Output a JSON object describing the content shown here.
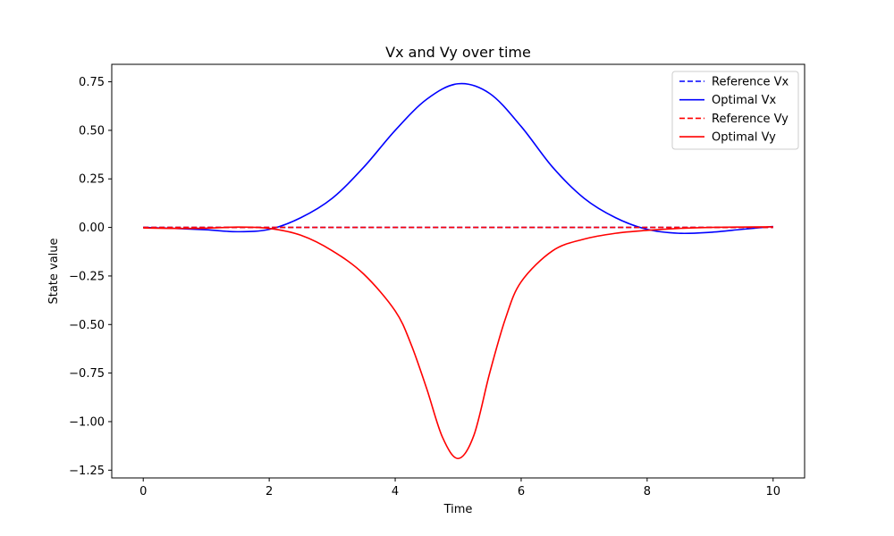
{
  "chart_data": {
    "type": "line",
    "title": "Vx and Vy over time",
    "xlabel": "Time",
    "ylabel": "State value",
    "xlim": [
      -0.5,
      10.5
    ],
    "ylim": [
      -1.29,
      0.84
    ],
    "xticks": [
      0,
      2,
      4,
      6,
      8,
      10
    ],
    "xtick_labels": [
      "0",
      "2",
      "4",
      "6",
      "8",
      "10"
    ],
    "yticks": [
      0.75,
      0.5,
      0.25,
      0.0,
      -0.25,
      -0.5,
      -0.75,
      -1.0,
      -1.25
    ],
    "ytick_labels": [
      "0.75",
      "0.50",
      "0.25",
      "0.00",
      "−0.25",
      "−0.50",
      "−0.75",
      "−1.00",
      "−1.25"
    ],
    "grid": false,
    "legend_position": "top-right",
    "series": [
      {
        "name": "Reference Vx",
        "color": "#0000ff",
        "style": "dashed",
        "x": [
          0,
          10
        ],
        "y": [
          0,
          0
        ]
      },
      {
        "name": "Optimal Vx",
        "color": "#0000ff",
        "style": "solid",
        "x": [
          0,
          0.5,
          1.0,
          1.5,
          2.0,
          2.5,
          3.0,
          3.5,
          4.0,
          4.5,
          5.0,
          5.5,
          6.0,
          6.5,
          7.0,
          7.5,
          8.0,
          8.5,
          9.0,
          9.5,
          10.0
        ],
        "y": [
          0.0,
          -0.005,
          -0.012,
          -0.022,
          -0.01,
          0.05,
          0.15,
          0.31,
          0.5,
          0.66,
          0.74,
          0.69,
          0.52,
          0.31,
          0.15,
          0.05,
          -0.01,
          -0.03,
          -0.025,
          -0.01,
          0.005
        ]
      },
      {
        "name": "Reference Vy",
        "color": "#ff0000",
        "style": "dashed",
        "x": [
          0,
          10
        ],
        "y": [
          0,
          0
        ]
      },
      {
        "name": "Optimal Vy",
        "color": "#ff0000",
        "style": "solid",
        "x": [
          0,
          0.5,
          1.0,
          1.5,
          2.0,
          2.5,
          3.0,
          3.5,
          4.0,
          4.25,
          4.5,
          4.75,
          5.0,
          5.25,
          5.5,
          5.75,
          6.0,
          6.5,
          7.0,
          7.5,
          8.0,
          8.5,
          9.0,
          9.5,
          10.0
        ],
        "y": [
          -0.003,
          -0.005,
          -0.004,
          0.002,
          -0.005,
          -0.04,
          -0.12,
          -0.24,
          -0.43,
          -0.6,
          -0.83,
          -1.08,
          -1.19,
          -1.07,
          -0.75,
          -0.47,
          -0.28,
          -0.12,
          -0.06,
          -0.03,
          -0.015,
          -0.005,
          0.0,
          0.002,
          0.003
        ]
      }
    ]
  }
}
